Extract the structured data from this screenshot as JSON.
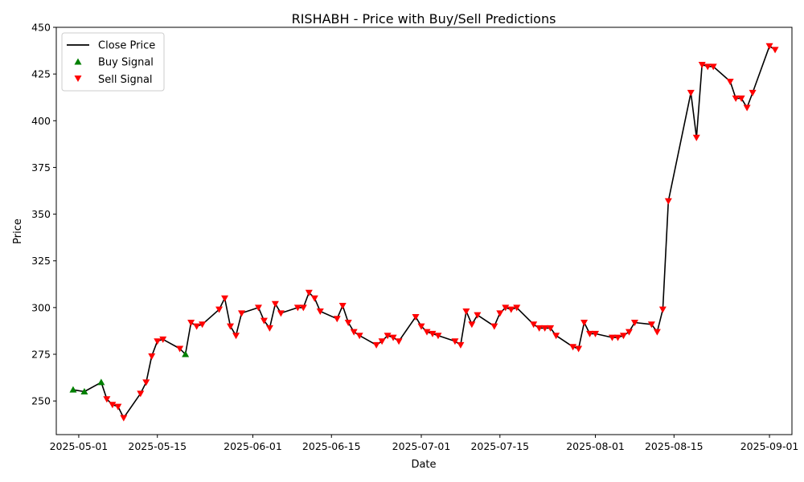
{
  "chart_data": {
    "type": "line",
    "title": "RISHABH - Price with Buy/Sell Predictions",
    "xlabel": "Date",
    "ylabel": "Price",
    "xlim": [
      "2025-04-27",
      "2025-09-05"
    ],
    "ylim": [
      232,
      450
    ],
    "x_ticks": [
      "2025-05-01",
      "2025-05-15",
      "2025-06-01",
      "2025-06-15",
      "2025-07-01",
      "2025-07-15",
      "2025-08-01",
      "2025-08-15",
      "2025-09-01"
    ],
    "y_ticks": [
      250,
      275,
      300,
      325,
      350,
      375,
      400,
      425,
      450
    ],
    "grid": false,
    "legend_position": "top-left",
    "colors": {
      "line": "#000000",
      "buy": "#008000",
      "sell": "#ff0000"
    },
    "legend": [
      {
        "label": "Close Price",
        "kind": "line"
      },
      {
        "label": "Buy Signal",
        "kind": "buy"
      },
      {
        "label": "Sell Signal",
        "kind": "sell"
      }
    ],
    "close_price": {
      "x": [
        "2025-04-30",
        "2025-05-02",
        "2025-05-05",
        "2025-05-06",
        "2025-05-07",
        "2025-05-08",
        "2025-05-09",
        "2025-05-12",
        "2025-05-13",
        "2025-05-14",
        "2025-05-15",
        "2025-05-16",
        "2025-05-19",
        "2025-05-20",
        "2025-05-21",
        "2025-05-22",
        "2025-05-23",
        "2025-05-26",
        "2025-05-27",
        "2025-05-28",
        "2025-05-29",
        "2025-05-30",
        "2025-06-02",
        "2025-06-03",
        "2025-06-04",
        "2025-06-05",
        "2025-06-06",
        "2025-06-09",
        "2025-06-10",
        "2025-06-11",
        "2025-06-12",
        "2025-06-13",
        "2025-06-16",
        "2025-06-17",
        "2025-06-18",
        "2025-06-19",
        "2025-06-20",
        "2025-06-23",
        "2025-06-24",
        "2025-06-25",
        "2025-06-26",
        "2025-06-27",
        "2025-06-30",
        "2025-07-01",
        "2025-07-02",
        "2025-07-03",
        "2025-07-04",
        "2025-07-07",
        "2025-07-08",
        "2025-07-09",
        "2025-07-10",
        "2025-07-11",
        "2025-07-14",
        "2025-07-15",
        "2025-07-16",
        "2025-07-17",
        "2025-07-18",
        "2025-07-21",
        "2025-07-22",
        "2025-07-23",
        "2025-07-24",
        "2025-07-25",
        "2025-07-28",
        "2025-07-29",
        "2025-07-30",
        "2025-07-31",
        "2025-08-01",
        "2025-08-04",
        "2025-08-05",
        "2025-08-06",
        "2025-08-07",
        "2025-08-08",
        "2025-08-11",
        "2025-08-12",
        "2025-08-13",
        "2025-08-14",
        "2025-08-18",
        "2025-08-19",
        "2025-08-20",
        "2025-08-21",
        "2025-08-22",
        "2025-08-25",
        "2025-08-26",
        "2025-08-27",
        "2025-08-28",
        "2025-08-29",
        "2025-09-01",
        "2025-09-02"
      ],
      "y": [
        256,
        255,
        260,
        251,
        248,
        247,
        241,
        254,
        260,
        274,
        282,
        283,
        278,
        275,
        292,
        290,
        291,
        299,
        305,
        290,
        285,
        297,
        300,
        293,
        289,
        302,
        297,
        300,
        300,
        308,
        305,
        298,
        294,
        301,
        292,
        287,
        285,
        280,
        282,
        285,
        284,
        282,
        295,
        290,
        287,
        286,
        285,
        282,
        280,
        298,
        291,
        296,
        290,
        297,
        300,
        299,
        300,
        291,
        289,
        289,
        289,
        285,
        279,
        278,
        292,
        286,
        286,
        284,
        284,
        285,
        287,
        292,
        291,
        287,
        299,
        357,
        415,
        391,
        430,
        429,
        429,
        421,
        412,
        412,
        407,
        415,
        440,
        438
      ]
    },
    "buy_signals": {
      "x": [
        "2025-04-30",
        "2025-05-02",
        "2025-05-05",
        "2025-05-20"
      ],
      "y": [
        256,
        255,
        260,
        275
      ]
    },
    "sell_signals": {
      "x": [
        "2025-05-06",
        "2025-05-07",
        "2025-05-08",
        "2025-05-09",
        "2025-05-12",
        "2025-05-13",
        "2025-05-14",
        "2025-05-15",
        "2025-05-16",
        "2025-05-19",
        "2025-05-21",
        "2025-05-22",
        "2025-05-23",
        "2025-05-26",
        "2025-05-27",
        "2025-05-28",
        "2025-05-29",
        "2025-05-30",
        "2025-06-02",
        "2025-06-03",
        "2025-06-04",
        "2025-06-05",
        "2025-06-06",
        "2025-06-09",
        "2025-06-10",
        "2025-06-11",
        "2025-06-12",
        "2025-06-13",
        "2025-06-16",
        "2025-06-17",
        "2025-06-18",
        "2025-06-19",
        "2025-06-20",
        "2025-06-23",
        "2025-06-24",
        "2025-06-25",
        "2025-06-26",
        "2025-06-27",
        "2025-06-30",
        "2025-07-01",
        "2025-07-02",
        "2025-07-03",
        "2025-07-04",
        "2025-07-07",
        "2025-07-08",
        "2025-07-09",
        "2025-07-10",
        "2025-07-11",
        "2025-07-14",
        "2025-07-15",
        "2025-07-16",
        "2025-07-17",
        "2025-07-18",
        "2025-07-21",
        "2025-07-22",
        "2025-07-23",
        "2025-07-24",
        "2025-07-25",
        "2025-07-28",
        "2025-07-29",
        "2025-07-30",
        "2025-07-31",
        "2025-08-01",
        "2025-08-04",
        "2025-08-05",
        "2025-08-06",
        "2025-08-07",
        "2025-08-08",
        "2025-08-11",
        "2025-08-12",
        "2025-08-13",
        "2025-08-14",
        "2025-08-18",
        "2025-08-19",
        "2025-08-20",
        "2025-08-21",
        "2025-08-22",
        "2025-08-25",
        "2025-08-26",
        "2025-08-27",
        "2025-08-28",
        "2025-08-29",
        "2025-09-01",
        "2025-09-02"
      ],
      "y": [
        251,
        248,
        247,
        241,
        254,
        260,
        274,
        282,
        283,
        278,
        292,
        290,
        291,
        299,
        305,
        290,
        285,
        297,
        300,
        293,
        289,
        302,
        297,
        300,
        300,
        308,
        305,
        298,
        294,
        301,
        292,
        287,
        285,
        280,
        282,
        285,
        284,
        282,
        295,
        290,
        287,
        286,
        285,
        282,
        280,
        298,
        291,
        296,
        290,
        297,
        300,
        299,
        300,
        291,
        289,
        289,
        289,
        285,
        279,
        278,
        292,
        286,
        286,
        284,
        284,
        285,
        287,
        292,
        291,
        287,
        299,
        357,
        415,
        391,
        430,
        429,
        429,
        421,
        412,
        412,
        407,
        415,
        440,
        438
      ]
    }
  }
}
